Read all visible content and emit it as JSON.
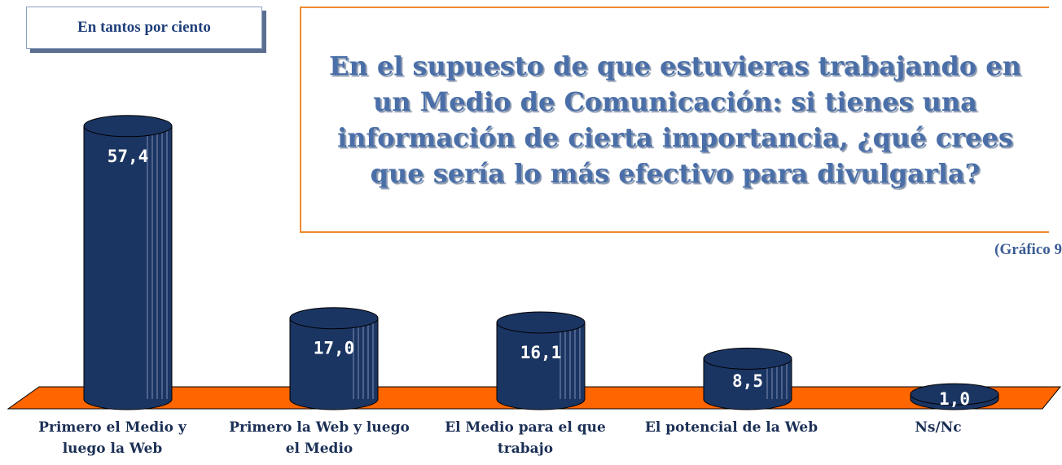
{
  "chart_data": {
    "type": "bar",
    "title": "En el supuesto de que estuvieras trabajando en un Medio de Comunicación: si tienes una información de cierta importancia, ¿qué crees que sería lo más efectivo para divulgarla?",
    "subtitle": "En tantos por ciento",
    "annotation": "(Gráfico 9",
    "categories": [
      "Primero el Medio y luego la Web",
      "Primero la Web y luego el Medio",
      "El Medio para el que trabajo",
      "El potencial de la Web",
      "Ns/Nc"
    ],
    "values": [
      57.4,
      17.0,
      16.1,
      8.5,
      1.0
    ],
    "value_labels": [
      "57,4",
      "17,0",
      "16,1",
      "8,5",
      "1,0"
    ],
    "color": "#1b3563",
    "floor_color": "#ff6600"
  }
}
